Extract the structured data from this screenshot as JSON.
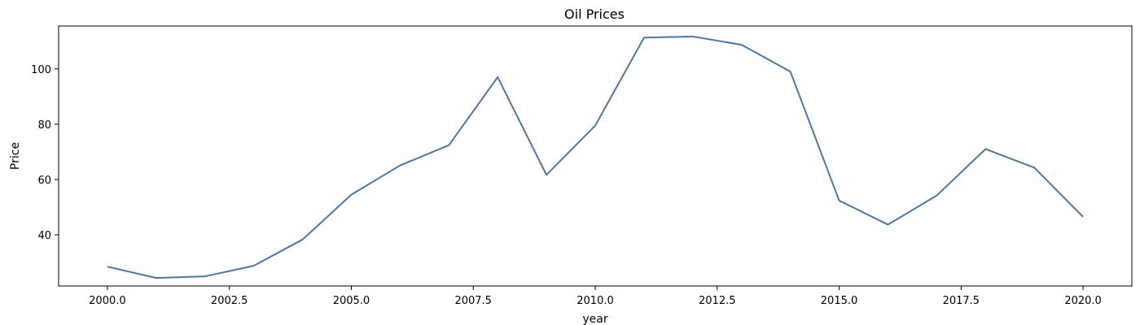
{
  "chart_data": {
    "type": "line",
    "title": "Oil Prices",
    "xlabel": "year",
    "ylabel": "Price",
    "xlim": [
      1999.0,
      2021.0
    ],
    "ylim": [
      21.5,
      115.5
    ],
    "x_ticks": [
      2000.0,
      2002.5,
      2005.0,
      2007.5,
      2010.0,
      2012.5,
      2015.0,
      2017.5,
      2020.0
    ],
    "x_tick_labels": [
      "2000.0",
      "2002.5",
      "2005.0",
      "2007.5",
      "2010.0",
      "2012.5",
      "2015.0",
      "2017.5",
      "2020.0"
    ],
    "y_ticks": [
      40,
      60,
      80,
      100
    ],
    "y_tick_labels": [
      "40",
      "60",
      "80",
      "100"
    ],
    "grid": false,
    "legend": "none",
    "series": [
      {
        "color": "#4a76a8",
        "x": [
          2000,
          2001,
          2002,
          2003,
          2004,
          2005,
          2006,
          2007,
          2008,
          2009,
          2010,
          2011,
          2012,
          2013,
          2014,
          2015,
          2016,
          2017,
          2018,
          2019,
          2020
        ],
        "y": [
          28.5,
          24.4,
          25.0,
          28.8,
          38.3,
          54.5,
          65.1,
          72.4,
          97.0,
          61.7,
          79.5,
          111.3,
          111.7,
          108.7,
          99.0,
          52.4,
          43.7,
          54.2,
          71.0,
          64.3,
          46.5
        ]
      }
    ]
  }
}
